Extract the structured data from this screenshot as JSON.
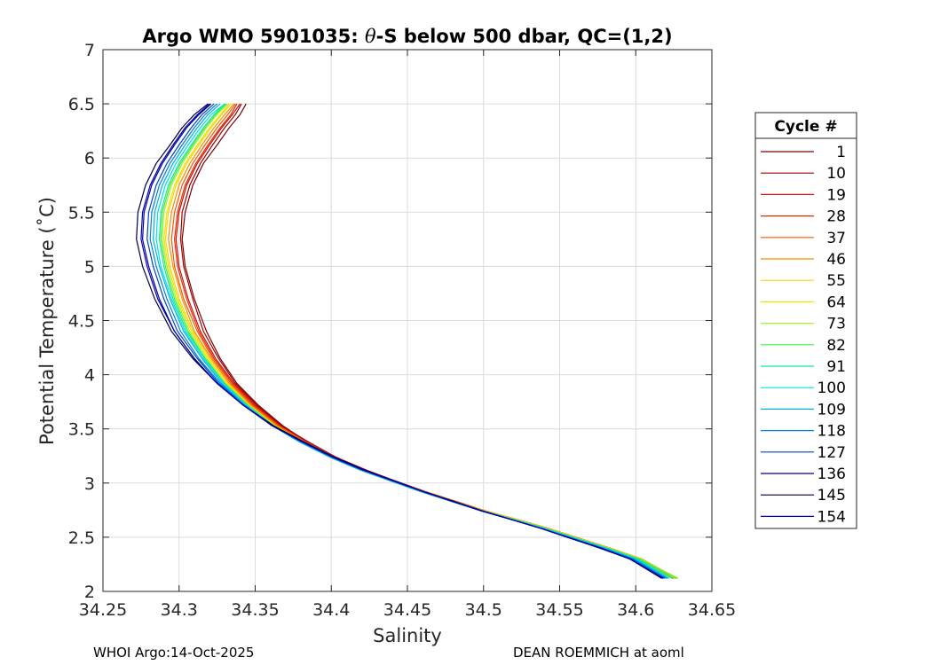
{
  "chart_data": {
    "type": "line",
    "title": "Argo WMO 5901035: θ-S below 500 dbar,  QC=(1,2)",
    "title_parts": {
      "prefix": "Argo WMO 5901035: ",
      "theta": "θ",
      "suffix": "-S below 500 dbar,  QC=(1,2)"
    },
    "xlabel": "Salinity",
    "ylabel": "Potential Temperature (˚C)",
    "xlim": [
      34.25,
      34.65
    ],
    "ylim": [
      2,
      7
    ],
    "xticks": [
      "34.25",
      "34.3",
      "34.35",
      "34.4",
      "34.45",
      "34.5",
      "34.55",
      "34.6",
      "34.65"
    ],
    "yticks": [
      "2",
      "2.5",
      "3",
      "3.5",
      "4",
      "4.5",
      "5",
      "5.5",
      "6",
      "6.5",
      "7"
    ],
    "grid": true,
    "legend": {
      "title": "Cycle #",
      "position": "outside-right",
      "entries": [
        {
          "label": "1",
          "color": "#7a0000"
        },
        {
          "label": "10",
          "color": "#a00000"
        },
        {
          "label": "19",
          "color": "#c81010"
        },
        {
          "label": "28",
          "color": "#e02a00"
        },
        {
          "label": "37",
          "color": "#f25a00"
        },
        {
          "label": "46",
          "color": "#fb8c00"
        },
        {
          "label": "55",
          "color": "#fdd000"
        },
        {
          "label": "64",
          "color": "#e6e600"
        },
        {
          "label": "73",
          "color": "#a4f030"
        },
        {
          "label": "82",
          "color": "#40ee40"
        },
        {
          "label": "91",
          "color": "#10e6a0"
        },
        {
          "label": "100",
          "color": "#00e0e0"
        },
        {
          "label": "109",
          "color": "#00b0e8"
        },
        {
          "label": "118",
          "color": "#0080d8"
        },
        {
          "label": "127",
          "color": "#0044c0"
        },
        {
          "label": "136",
          "color": "#000090"
        },
        {
          "label": "145",
          "color": "#000040"
        },
        {
          "label": "154",
          "color": "#0000b0"
        }
      ]
    },
    "base_profile": {
      "salinity": [
        34.623,
        34.6,
        34.58,
        34.56,
        34.54,
        34.52,
        34.5,
        34.48,
        34.46,
        34.44,
        34.42,
        34.4,
        34.38,
        34.362,
        34.345,
        34.33,
        34.318,
        34.307,
        34.298,
        34.292,
        34.289,
        34.29,
        34.295,
        34.302,
        34.31,
        34.318,
        34.325,
        34.332
      ],
      "theta": [
        2.12,
        2.3,
        2.4,
        2.49,
        2.58,
        2.66,
        2.74,
        2.83,
        2.92,
        3.02,
        3.12,
        3.24,
        3.38,
        3.53,
        3.72,
        3.92,
        4.15,
        4.4,
        4.7,
        5.0,
        5.25,
        5.5,
        5.75,
        5.95,
        6.12,
        6.28,
        6.4,
        6.5
      ]
    },
    "series": [
      {
        "name": "1",
        "values": [
          34.624,
          34.601,
          34.581,
          34.561,
          34.541,
          34.521,
          34.501,
          34.481,
          34.461,
          34.441,
          34.422,
          34.403,
          34.384,
          34.368,
          34.352,
          34.338,
          34.327,
          34.318,
          34.31,
          34.304,
          34.302,
          34.304,
          34.309,
          34.316,
          34.325,
          34.333,
          34.34,
          34.344
        ]
      },
      {
        "name": "10",
        "values": [
          34.626,
          34.602,
          34.581,
          34.561,
          34.541,
          34.521,
          34.501,
          34.481,
          34.461,
          34.442,
          34.422,
          34.403,
          34.385,
          34.367,
          34.351,
          34.337,
          34.326,
          34.316,
          34.309,
          34.303,
          34.301,
          34.302,
          34.307,
          34.314,
          34.322,
          34.33,
          34.337,
          34.341
        ]
      },
      {
        "name": "19",
        "values": [
          34.625,
          34.602,
          34.582,
          34.562,
          34.542,
          34.522,
          34.502,
          34.482,
          34.462,
          34.442,
          34.423,
          34.403,
          34.384,
          34.366,
          34.35,
          34.336,
          34.324,
          34.314,
          34.306,
          34.3,
          34.298,
          34.3,
          34.305,
          34.312,
          34.32,
          34.328,
          34.335,
          34.34
        ]
      },
      {
        "name": "28",
        "values": [
          34.627,
          34.603,
          34.583,
          34.563,
          34.543,
          34.523,
          34.502,
          34.482,
          34.462,
          34.442,
          34.422,
          34.402,
          34.383,
          34.366,
          34.349,
          34.335,
          34.323,
          34.313,
          34.305,
          34.299,
          34.297,
          34.299,
          34.304,
          34.311,
          34.319,
          34.327,
          34.334,
          34.338
        ]
      },
      {
        "name": "37",
        "values": [
          34.625,
          34.602,
          34.582,
          34.562,
          34.542,
          34.522,
          34.502,
          34.482,
          34.462,
          34.442,
          34.421,
          34.402,
          34.383,
          34.365,
          34.348,
          34.334,
          34.322,
          34.312,
          34.303,
          34.297,
          34.295,
          34.297,
          34.302,
          34.309,
          34.317,
          34.325,
          34.332,
          34.337
        ]
      },
      {
        "name": "46",
        "values": [
          34.627,
          34.604,
          34.583,
          34.563,
          34.543,
          34.523,
          34.502,
          34.481,
          34.461,
          34.441,
          34.421,
          34.401,
          34.382,
          34.364,
          34.347,
          34.333,
          34.321,
          34.31,
          34.302,
          34.296,
          34.293,
          34.295,
          34.3,
          34.307,
          34.315,
          34.323,
          34.33,
          34.336
        ]
      },
      {
        "name": "55",
        "values": [
          34.624,
          34.602,
          34.582,
          34.562,
          34.542,
          34.522,
          34.501,
          34.481,
          34.461,
          34.441,
          34.421,
          34.401,
          34.381,
          34.363,
          34.346,
          34.332,
          34.32,
          34.309,
          34.3,
          34.294,
          34.291,
          34.293,
          34.298,
          34.305,
          34.313,
          34.321,
          34.328,
          34.334
        ]
      },
      {
        "name": "64",
        "values": [
          34.626,
          34.603,
          34.582,
          34.562,
          34.542,
          34.522,
          34.501,
          34.48,
          34.46,
          34.44,
          34.42,
          34.4,
          34.381,
          34.363,
          34.346,
          34.331,
          34.319,
          34.308,
          34.299,
          34.293,
          34.29,
          34.292,
          34.297,
          34.304,
          34.312,
          34.32,
          34.327,
          34.333
        ]
      },
      {
        "name": "73",
        "values": [
          34.628,
          34.603,
          34.582,
          34.561,
          34.541,
          34.521,
          34.5,
          34.479,
          34.459,
          34.439,
          34.419,
          34.399,
          34.38,
          34.362,
          34.345,
          34.33,
          34.318,
          34.307,
          34.298,
          34.292,
          34.289,
          34.29,
          34.295,
          34.302,
          34.31,
          34.318,
          34.325,
          34.332
        ]
      },
      {
        "name": "82",
        "values": [
          34.627,
          34.602,
          34.581,
          34.561,
          34.541,
          34.521,
          34.5,
          34.479,
          34.459,
          34.439,
          34.419,
          34.399,
          34.38,
          34.362,
          34.345,
          34.33,
          34.317,
          34.306,
          34.297,
          34.291,
          34.288,
          34.289,
          34.294,
          34.301,
          34.309,
          34.317,
          34.324,
          34.331
        ]
      },
      {
        "name": "91",
        "values": [
          34.624,
          34.601,
          34.581,
          34.561,
          34.541,
          34.521,
          34.5,
          34.48,
          34.46,
          34.44,
          34.419,
          34.399,
          34.38,
          34.362,
          34.345,
          34.33,
          34.317,
          34.305,
          34.296,
          34.29,
          34.287,
          34.288,
          34.293,
          34.3,
          34.308,
          34.316,
          34.323,
          34.33
        ]
      },
      {
        "name": "100",
        "values": [
          34.622,
          34.6,
          34.58,
          34.56,
          34.54,
          34.52,
          34.5,
          34.48,
          34.46,
          34.44,
          34.42,
          34.4,
          34.38,
          34.361,
          34.344,
          34.329,
          34.316,
          34.304,
          34.295,
          34.288,
          34.285,
          34.286,
          34.291,
          34.298,
          34.306,
          34.314,
          34.321,
          34.33
        ]
      },
      {
        "name": "109",
        "values": [
          34.621,
          34.599,
          34.579,
          34.559,
          34.539,
          34.519,
          34.499,
          34.479,
          34.459,
          34.439,
          34.419,
          34.399,
          34.379,
          34.361,
          34.343,
          34.328,
          34.315,
          34.303,
          34.294,
          34.287,
          34.283,
          34.284,
          34.289,
          34.296,
          34.304,
          34.312,
          34.319,
          34.327
        ]
      },
      {
        "name": "118",
        "values": [
          34.62,
          34.598,
          34.578,
          34.558,
          34.538,
          34.519,
          34.499,
          34.479,
          34.46,
          34.44,
          34.42,
          34.4,
          34.38,
          34.361,
          34.343,
          34.327,
          34.313,
          34.301,
          34.292,
          34.285,
          34.281,
          34.282,
          34.287,
          34.294,
          34.302,
          34.31,
          34.317,
          34.325
        ]
      },
      {
        "name": "127",
        "values": [
          34.619,
          34.597,
          34.577,
          34.558,
          34.538,
          34.519,
          34.499,
          34.48,
          34.46,
          34.441,
          34.421,
          34.401,
          34.381,
          34.361,
          34.342,
          34.326,
          34.312,
          34.299,
          34.29,
          34.283,
          34.279,
          34.28,
          34.285,
          34.292,
          34.3,
          34.308,
          34.315,
          34.323
        ]
      },
      {
        "name": "136",
        "values": [
          34.618,
          34.596,
          34.577,
          34.557,
          34.538,
          34.519,
          34.5,
          34.48,
          34.461,
          34.441,
          34.421,
          34.401,
          34.381,
          34.361,
          34.342,
          34.325,
          34.31,
          34.297,
          34.287,
          34.28,
          34.276,
          34.277,
          34.282,
          34.289,
          34.297,
          34.305,
          34.313,
          34.321
        ]
      },
      {
        "name": "145",
        "values": [
          34.617,
          34.596,
          34.576,
          34.557,
          34.538,
          34.519,
          34.5,
          34.481,
          34.461,
          34.442,
          34.422,
          34.402,
          34.382,
          34.362,
          34.342,
          34.325,
          34.309,
          34.295,
          34.284,
          34.276,
          34.272,
          34.273,
          34.278,
          34.285,
          34.294,
          34.302,
          34.31,
          34.319
        ]
      },
      {
        "name": "154",
        "values": [
          34.618,
          34.596,
          34.577,
          34.557,
          34.538,
          34.519,
          34.5,
          34.48,
          34.461,
          34.441,
          34.421,
          34.401,
          34.381,
          34.361,
          34.342,
          34.325,
          34.31,
          34.297,
          34.286,
          34.279,
          34.275,
          34.276,
          34.281,
          34.288,
          34.296,
          34.304,
          34.312,
          34.32
        ]
      }
    ]
  },
  "footer": {
    "left": "WHOI Argo:14-Oct-2025",
    "right": "DEAN ROEMMICH at aoml"
  }
}
